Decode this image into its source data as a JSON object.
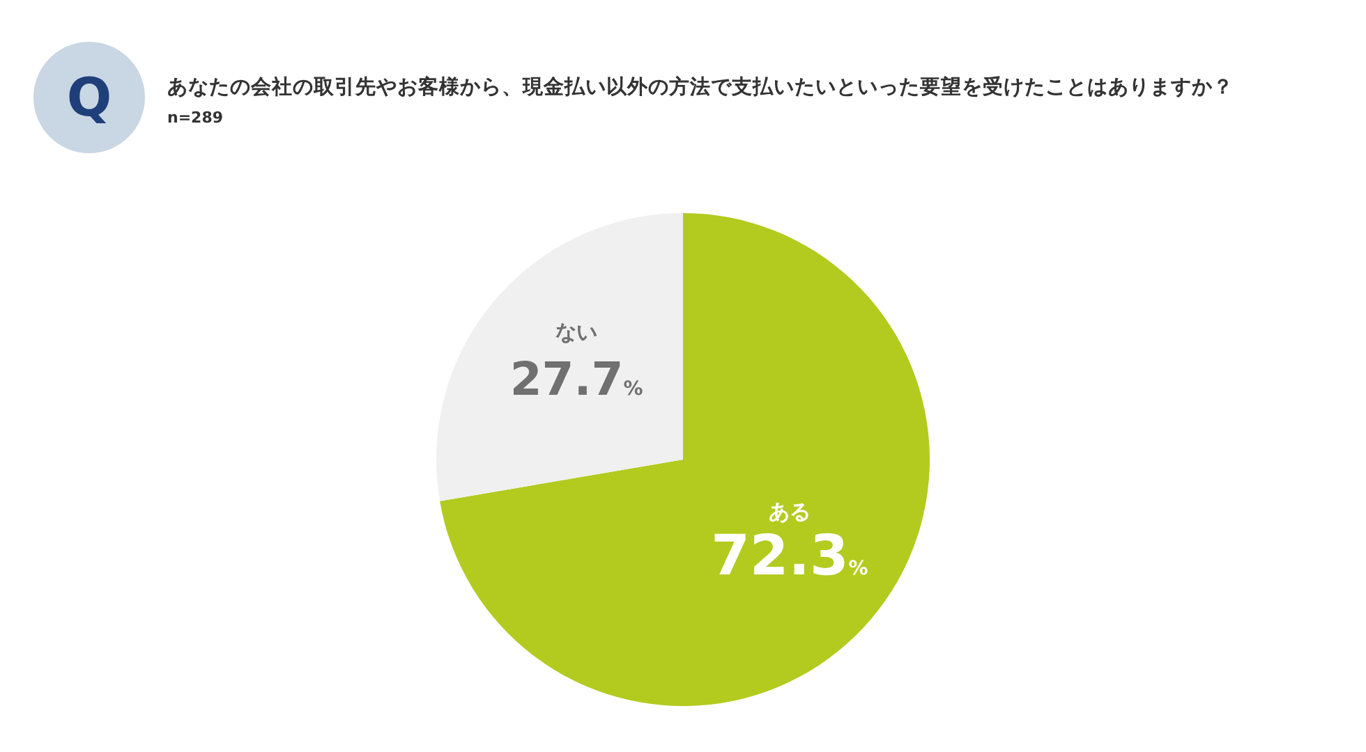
{
  "chart_data": {
    "type": "pie",
    "title": "あなたの会社の取引先やお客様から、現金払い以外の方法で支払いたいといった要望を受けたことはありますか？",
    "subtitle": "n=289",
    "categories": [
      "ある",
      "ない"
    ],
    "values": [
      72.3,
      27.7
    ],
    "colors": [
      "#b3cb1e",
      "#f0f0f0"
    ],
    "value_labels": [
      "72.3%",
      "27.7%"
    ],
    "annotations": [
      "Q"
    ]
  }
}
